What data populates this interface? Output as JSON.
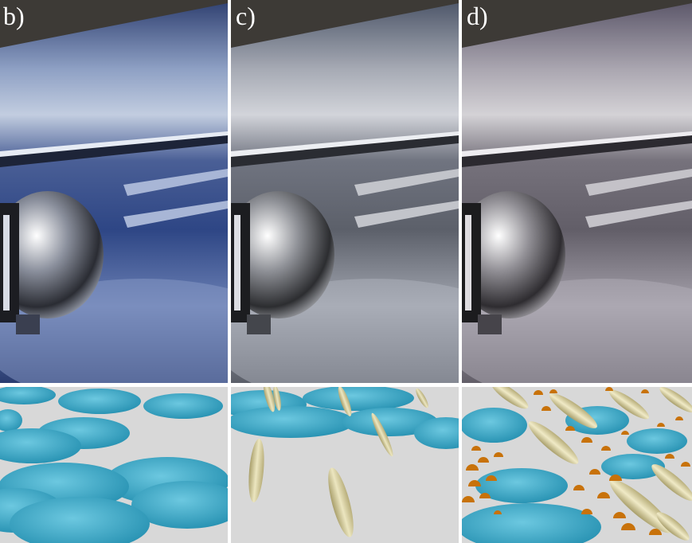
{
  "panels": [
    {
      "label": "b)",
      "tint": "#3a5a9a",
      "base": "#5a6f9c"
    },
    {
      "label": "c)",
      "tint": "#6a6e78",
      "base": "#8a8e96"
    },
    {
      "label": "d)",
      "tint": "#6d6a74",
      "base": "#8d8a92"
    }
  ],
  "colors": {
    "disc": "#3fb0cf",
    "needle": "#d9d3a8",
    "dome": "#c8720a",
    "ground": "#d8d8d8",
    "ceiling": "#3d3a36"
  }
}
